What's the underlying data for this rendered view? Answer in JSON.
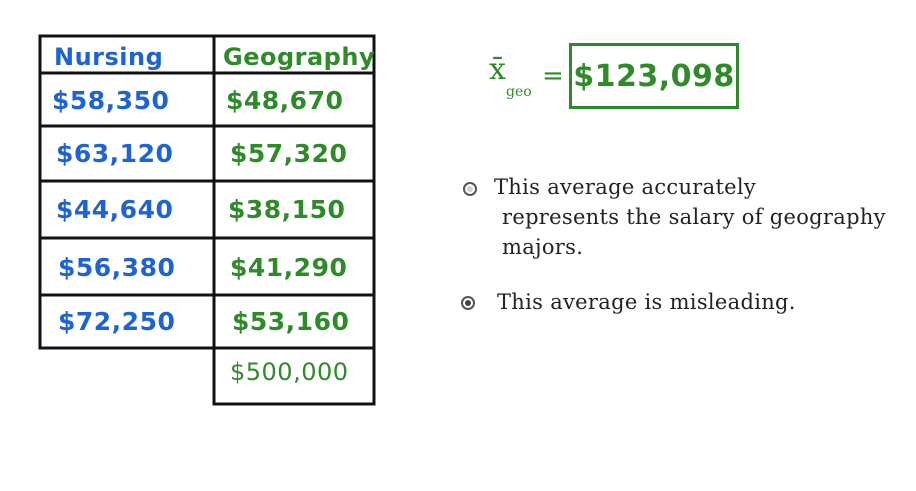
{
  "table": {
    "headers": {
      "nursing": "Nursing",
      "geography": "Geography"
    },
    "nursing_values": [
      "$58,350",
      "$63,120",
      "$44,640",
      "$56,380",
      "$72,250"
    ],
    "geography_values": [
      "$48,670",
      "$57,320",
      "$38,150",
      "$41,290",
      "$53,160",
      "$500,000"
    ]
  },
  "mean": {
    "symbol": "x̄",
    "subscript": "geo",
    "equals": "=",
    "value": "$123,098"
  },
  "options": [
    {
      "line1": "This average accurately",
      "line2": "represents the salary of geography",
      "line3": "majors.",
      "selected": false
    },
    {
      "line1": "This average is misleading.",
      "selected": true
    }
  ],
  "colors": {
    "nursing": "#1e63d6",
    "geography": "#2f8a2a",
    "lines": "#111111"
  }
}
